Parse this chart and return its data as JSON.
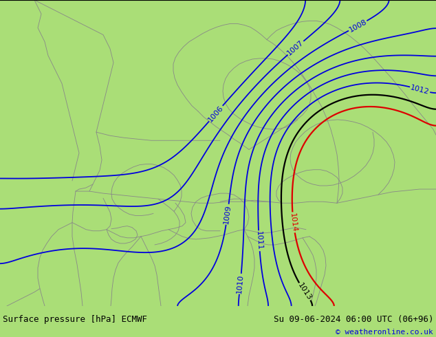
{
  "title_left": "Surface pressure [hPa] ECMWF",
  "title_right": "Su 09-06-2024 06:00 UTC (06+96)",
  "copyright": "© weatheronline.co.uk",
  "map_bg": "#aade77",
  "footer_bg": "#c8c8c8",
  "blue_line_color": "#0000dd",
  "black_line_color": "#000000",
  "red_line_color": "#dd0000",
  "figsize": [
    6.34,
    4.9
  ],
  "dpi": 100,
  "border_color": "#888888",
  "border_lw": 0.6
}
